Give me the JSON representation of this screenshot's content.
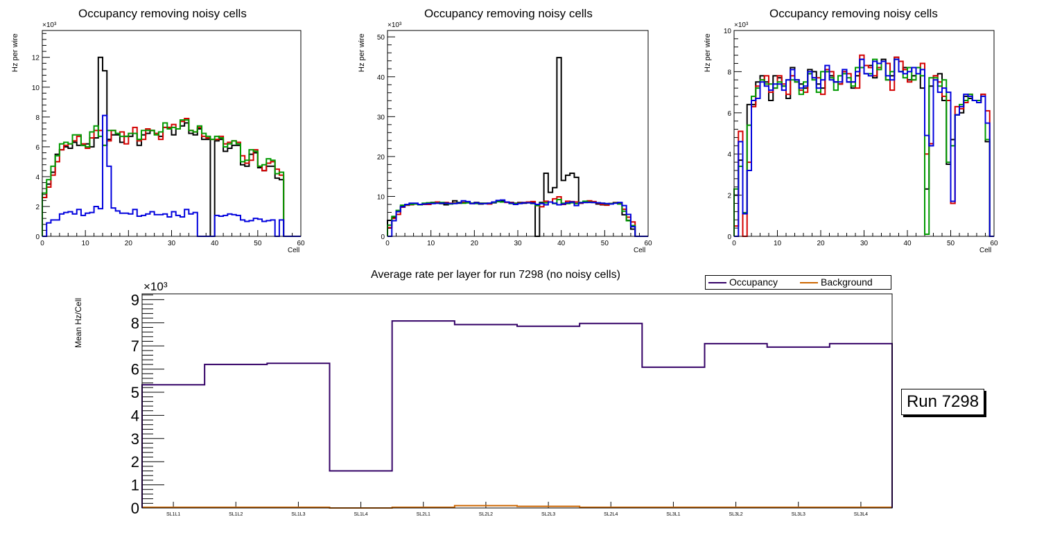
{
  "panels": [
    {
      "title": "Occupancy removing noisy cells",
      "ylabel": "Hz per wire",
      "xlabel": "Cell",
      "exponent": "×10³",
      "xlim": [
        0,
        60
      ],
      "ylim": [
        0,
        13.8
      ],
      "ymajor": 2,
      "series": [
        {
          "name": "black",
          "color": "#000000",
          "values": [
            2.6,
            3.5,
            4.3,
            5.5,
            5.8,
            6.0,
            5.9,
            6.3,
            6.1,
            6.1,
            6.2,
            6.0,
            6.6,
            12.0,
            11.1,
            6.5,
            6.8,
            6.8,
            6.3,
            6.7,
            6.7,
            6.9,
            6.1,
            6.8,
            6.9,
            7.1,
            6.9,
            6.7,
            7.3,
            7.3,
            6.8,
            7.2,
            7.4,
            7.6,
            6.9,
            6.8,
            7.2,
            6.5,
            6.5,
            0,
            6.4,
            6.5,
            5.7,
            5.9,
            6.1,
            6.1,
            4.8,
            4.7,
            5.5,
            5.6,
            4.6,
            4.4,
            4.7,
            4.7,
            3.9,
            3.8,
            0,
            0,
            0,
            0
          ]
        },
        {
          "name": "red",
          "color": "#d40000",
          "values": [
            2.6,
            3.3,
            4.1,
            5.0,
            5.8,
            6.1,
            6.2,
            6.4,
            6.7,
            6.2,
            5.9,
            6.6,
            7.1,
            7.1,
            6.1,
            6.4,
            7.1,
            6.9,
            7.0,
            6.2,
            6.9,
            7.3,
            6.4,
            6.5,
            7.2,
            7.1,
            6.9,
            6.5,
            7.3,
            7.3,
            7.5,
            7.2,
            7.7,
            7.9,
            7.1,
            7.0,
            7.3,
            6.7,
            6.6,
            6.5,
            6.5,
            6.7,
            6.2,
            6.3,
            6.4,
            6.3,
            5.4,
            4.9,
            5.1,
            5.8,
            4.7,
            4.4,
            4.9,
            5.0,
            4.5,
            4.1,
            0,
            0,
            0,
            0
          ]
        },
        {
          "name": "green",
          "color": "#009900",
          "values": [
            2.9,
            3.8,
            4.7,
            5.4,
            6.2,
            6.3,
            6.2,
            6.8,
            6.8,
            6.1,
            6.0,
            7.0,
            7.4,
            6.7,
            6.1,
            7.1,
            7.1,
            6.9,
            6.7,
            6.7,
            6.9,
            6.9,
            6.5,
            7.1,
            7.1,
            7.1,
            6.8,
            7.0,
            7.6,
            7.2,
            7.3,
            7.2,
            7.8,
            7.8,
            7.1,
            7.0,
            7.4,
            6.9,
            6.7,
            6.5,
            6.7,
            6.6,
            6.0,
            6.2,
            6.4,
            6.2,
            5.0,
            5.1,
            5.8,
            5.7,
            4.7,
            4.8,
            5.2,
            5.1,
            4.2,
            4.3,
            0,
            0,
            0,
            0
          ]
        },
        {
          "name": "blue",
          "color": "#0000dd",
          "values": [
            0,
            0.9,
            1.1,
            1.1,
            1.5,
            1.6,
            1.65,
            1.5,
            1.8,
            1.4,
            1.55,
            1.6,
            2.0,
            1.85,
            8.1,
            4.7,
            1.9,
            1.7,
            1.55,
            1.55,
            1.5,
            1.8,
            1.35,
            1.4,
            1.5,
            1.65,
            1.45,
            1.45,
            1.5,
            1.3,
            1.65,
            1.4,
            1.3,
            1.8,
            1.5,
            1.6,
            0,
            0,
            0,
            0,
            1.4,
            1.35,
            1.4,
            1.5,
            1.45,
            1.4,
            1.1,
            1.0,
            1.05,
            1.2,
            1.15,
            1.0,
            1.05,
            1.1,
            0,
            1.1,
            0,
            0,
            0,
            0
          ]
        }
      ]
    },
    {
      "title": "Occupancy removing noisy cells",
      "ylabel": "Hz per wire",
      "xlabel": "Cell",
      "exponent": "×10³",
      "xlim": [
        0,
        60
      ],
      "ylim": [
        0,
        51.6
      ],
      "ymajor": 10,
      "series": [
        {
          "name": "black",
          "color": "#000000",
          "values": [
            4,
            4.8,
            6.2,
            7.5,
            7.8,
            8.1,
            8.2,
            8.0,
            8.0,
            8.3,
            8.5,
            8.4,
            8.2,
            7.9,
            8.2,
            8.9,
            8.3,
            8.5,
            8.5,
            8.3,
            8.5,
            8.1,
            8.2,
            8.2,
            8.4,
            8.7,
            8.8,
            8.6,
            8.5,
            8.3,
            8.5,
            8.3,
            8.5,
            8.5,
            0,
            8.5,
            15.8,
            11,
            12.2,
            44.8,
            14,
            15.3,
            15.8,
            14.8,
            8.3,
            8.5,
            8.6,
            8.5,
            8.1,
            7.9,
            8.1,
            8.2,
            8.4,
            8.2,
            5.4,
            4.0,
            1.8,
            0,
            0,
            0
          ]
        },
        {
          "name": "red",
          "color": "#d40000",
          "values": [
            2.2,
            4.5,
            5.5,
            7.3,
            7.8,
            7.9,
            8.1,
            8.0,
            8.0,
            8.0,
            8.3,
            8.6,
            8.4,
            8.5,
            8.3,
            8.4,
            8.5,
            8.5,
            8.4,
            8.2,
            8.4,
            8.3,
            8.3,
            8.1,
            8.6,
            8.8,
            8.6,
            8.5,
            8.4,
            8.2,
            8.4,
            8.5,
            8.6,
            8.7,
            7.7,
            7.4,
            8.8,
            8.6,
            9.4,
            9.9,
            8.0,
            8.8,
            8.7,
            8.6,
            8.3,
            8.6,
            8.9,
            8.7,
            8.3,
            8.0,
            7.8,
            8.2,
            8.5,
            8.4,
            6.8,
            4.8,
            3.6,
            0,
            0,
            0
          ]
        },
        {
          "name": "green",
          "color": "#009900",
          "values": [
            2.8,
            5.0,
            6.5,
            7.8,
            7.9,
            8.0,
            8.1,
            7.9,
            8.3,
            8.4,
            8.4,
            8.3,
            8.5,
            8.3,
            8.1,
            8.3,
            8.5,
            8.3,
            8.4,
            8.3,
            8.2,
            8.3,
            8.3,
            8.3,
            8.5,
            8.7,
            8.6,
            8.6,
            8.2,
            8.2,
            8.3,
            8.4,
            8.4,
            8.2,
            7.7,
            8.3,
            8.4,
            8.6,
            8.2,
            9.2,
            8.3,
            8.2,
            8.4,
            8.2,
            8.5,
            8.8,
            8.6,
            8.5,
            8.4,
            8.3,
            8.1,
            8.2,
            8.4,
            8.1,
            6.3,
            3.9,
            2.7,
            0,
            0,
            0
          ]
        },
        {
          "name": "blue",
          "color": "#0000dd",
          "values": [
            0,
            3.9,
            6.2,
            7.4,
            8.0,
            8.3,
            8.3,
            8.0,
            8.1,
            8.2,
            8.2,
            8.3,
            8.3,
            8.3,
            8.2,
            8.2,
            8.4,
            8.9,
            8.7,
            8.2,
            8.4,
            8.2,
            8.2,
            8.3,
            8.6,
            9.0,
            9.1,
            8.6,
            8.3,
            8.0,
            8.2,
            8.4,
            8.4,
            8.3,
            8.0,
            8.2,
            7.9,
            8.6,
            8.3,
            7.9,
            8.1,
            8.4,
            8.6,
            7.7,
            8.4,
            8.5,
            8.5,
            8.5,
            8.4,
            8.3,
            8.2,
            8.1,
            8.3,
            8.5,
            7.7,
            5.5,
            2.4,
            0,
            0,
            0
          ]
        }
      ]
    },
    {
      "title": "Occupancy removing noisy cells",
      "ylabel": "Hz per wire",
      "xlabel": "Cell",
      "exponent": "×10³",
      "xlim": [
        0,
        60
      ],
      "ylim": [
        0,
        10
      ],
      "ymajor": 2,
      "series": [
        {
          "name": "black",
          "color": "#000000",
          "values": [
            2.0,
            3.7,
            1.1,
            6.4,
            6.4,
            7.5,
            7.8,
            7.5,
            6.6,
            7.8,
            7.7,
            7.3,
            6.7,
            8.2,
            7.6,
            7.4,
            7.2,
            8.1,
            8.0,
            7.4,
            7.2,
            8.0,
            7.8,
            7.5,
            7.4,
            8.0,
            7.5,
            7.2,
            7.8,
            8.6,
            8.3,
            8.3,
            7.7,
            8.2,
            8.6,
            7.6,
            7.8,
            8.7,
            8.0,
            8.2,
            7.6,
            7.8,
            8.2,
            7.2,
            2.3,
            7.3,
            7.8,
            7.9,
            6.6,
            3.5,
            4.7,
            5.9,
            6.0,
            6.8,
            6.7,
            6.6,
            6.6,
            6.9,
            4.6,
            0
          ]
        },
        {
          "name": "red",
          "color": "#d40000",
          "values": [
            0.5,
            5.1,
            0,
            3.6,
            6.3,
            7.3,
            7.6,
            7.8,
            7.0,
            7.2,
            7.8,
            7.4,
            6.9,
            7.8,
            7.5,
            7.1,
            7.0,
            7.9,
            7.7,
            7.7,
            6.9,
            8.1,
            8.0,
            7.5,
            7.4,
            8.0,
            7.9,
            7.5,
            7.2,
            8.8,
            8.3,
            8.2,
            7.8,
            8.2,
            8.5,
            8.4,
            7.1,
            8.7,
            8.5,
            8.1,
            7.5,
            7.6,
            8.2,
            8.4,
            4.0,
            4.5,
            7.8,
            7.5,
            6.8,
            6.6,
            1.6,
            6.3,
            6.2,
            6.5,
            6.9,
            6.6,
            6.5,
            6.9,
            6.1,
            0
          ]
        },
        {
          "name": "green",
          "color": "#009900",
          "values": [
            2.3,
            3.4,
            1.15,
            5.4,
            6.8,
            7.2,
            7.6,
            7.4,
            7.4,
            7.2,
            7.5,
            7.3,
            7.6,
            7.6,
            7.5,
            6.9,
            7.5,
            7.9,
            7.6,
            7.0,
            8.0,
            8.0,
            7.7,
            7.1,
            7.8,
            7.9,
            7.7,
            7.3,
            8.2,
            8.2,
            7.9,
            7.9,
            8.6,
            8.1,
            8.5,
            7.6,
            8.0,
            8.6,
            8.0,
            7.7,
            8.2,
            7.6,
            8.2,
            7.8,
            0.1,
            7.7,
            7.7,
            7.3,
            7.6,
            3.6,
            4.4,
            5.9,
            6.4,
            6.6,
            6.9,
            6.6,
            6.6,
            6.8,
            4.7,
            0
          ]
        },
        {
          "name": "blue",
          "color": "#0000dd",
          "values": [
            0,
            4.6,
            1.1,
            3.2,
            6.6,
            6.7,
            7.5,
            7.3,
            7.1,
            7.4,
            7.4,
            7.1,
            7.6,
            8.1,
            7.6,
            7.2,
            7.3,
            8.0,
            7.7,
            7.2,
            7.6,
            8.3,
            7.6,
            7.5,
            7.5,
            8.1,
            7.5,
            7.5,
            8.0,
            8.6,
            7.9,
            7.8,
            8.5,
            8.4,
            8.5,
            7.8,
            7.6,
            8.6,
            8.0,
            7.9,
            8.0,
            8.2,
            7.9,
            8.1,
            4.9,
            4.4,
            7.6,
            7.0,
            7.2,
            7.0,
            1.7,
            5.9,
            6.3,
            6.9,
            6.8,
            6.6,
            6.5,
            6.8,
            5.5,
            0
          ]
        }
      ]
    }
  ],
  "summary": {
    "title": "Average rate per layer for run 7298 (no noisy cells)",
    "ylabel": "Mean Hz/Cell",
    "exponent": "×10³",
    "legend": [
      {
        "label": "Occupancy",
        "color": "#330066"
      },
      {
        "label": "Background",
        "color": "#cc6600"
      }
    ],
    "run_label": "Run 7298"
  },
  "chart_data": [
    {
      "type": "bar",
      "title": "Occupancy removing noisy cells",
      "xlabel": "Cell",
      "ylabel": "Hz per wire (×10³)",
      "xlim": [
        0,
        60
      ],
      "ylim": [
        0,
        13.8
      ],
      "note": "step histograms, series in panels[0]"
    },
    {
      "type": "bar",
      "title": "Occupancy removing noisy cells",
      "xlabel": "Cell",
      "ylabel": "Hz per wire (×10³)",
      "xlim": [
        0,
        60
      ],
      "ylim": [
        0,
        51.6
      ],
      "note": "step histograms, series in panels[1]"
    },
    {
      "type": "bar",
      "title": "Occupancy removing noisy cells",
      "xlabel": "Cell",
      "ylabel": "Hz per wire (×10³)",
      "xlim": [
        0,
        60
      ],
      "ylim": [
        0,
        10
      ],
      "note": "step histograms, series in panels[2]"
    },
    {
      "type": "line",
      "title": "Average rate per layer for run 7298 (no noisy cells)",
      "xlabel": "",
      "ylabel": "Mean Hz/Cell (×10³)",
      "ylim": [
        0,
        9.25
      ],
      "legend_position": "top-right",
      "categories": [
        "SL1L1",
        "SL1L2",
        "SL1L3",
        "SL1L4",
        "SL2L1",
        "SL2L2",
        "SL2L3",
        "SL2L4",
        "SL3L1",
        "SL3L2",
        "SL3L3",
        "SL3L4"
      ],
      "series": [
        {
          "name": "Occupancy",
          "values": [
            5.32,
            6.2,
            6.25,
            1.6,
            8.08,
            7.92,
            7.85,
            7.97,
            6.08,
            7.1,
            6.95,
            7.1
          ]
        },
        {
          "name": "Background",
          "values": [
            0.03,
            0.03,
            0.03,
            0.0,
            0.03,
            0.1,
            0.07,
            0.03,
            0.03,
            0.03,
            0.03,
            0.03
          ]
        }
      ]
    }
  ]
}
